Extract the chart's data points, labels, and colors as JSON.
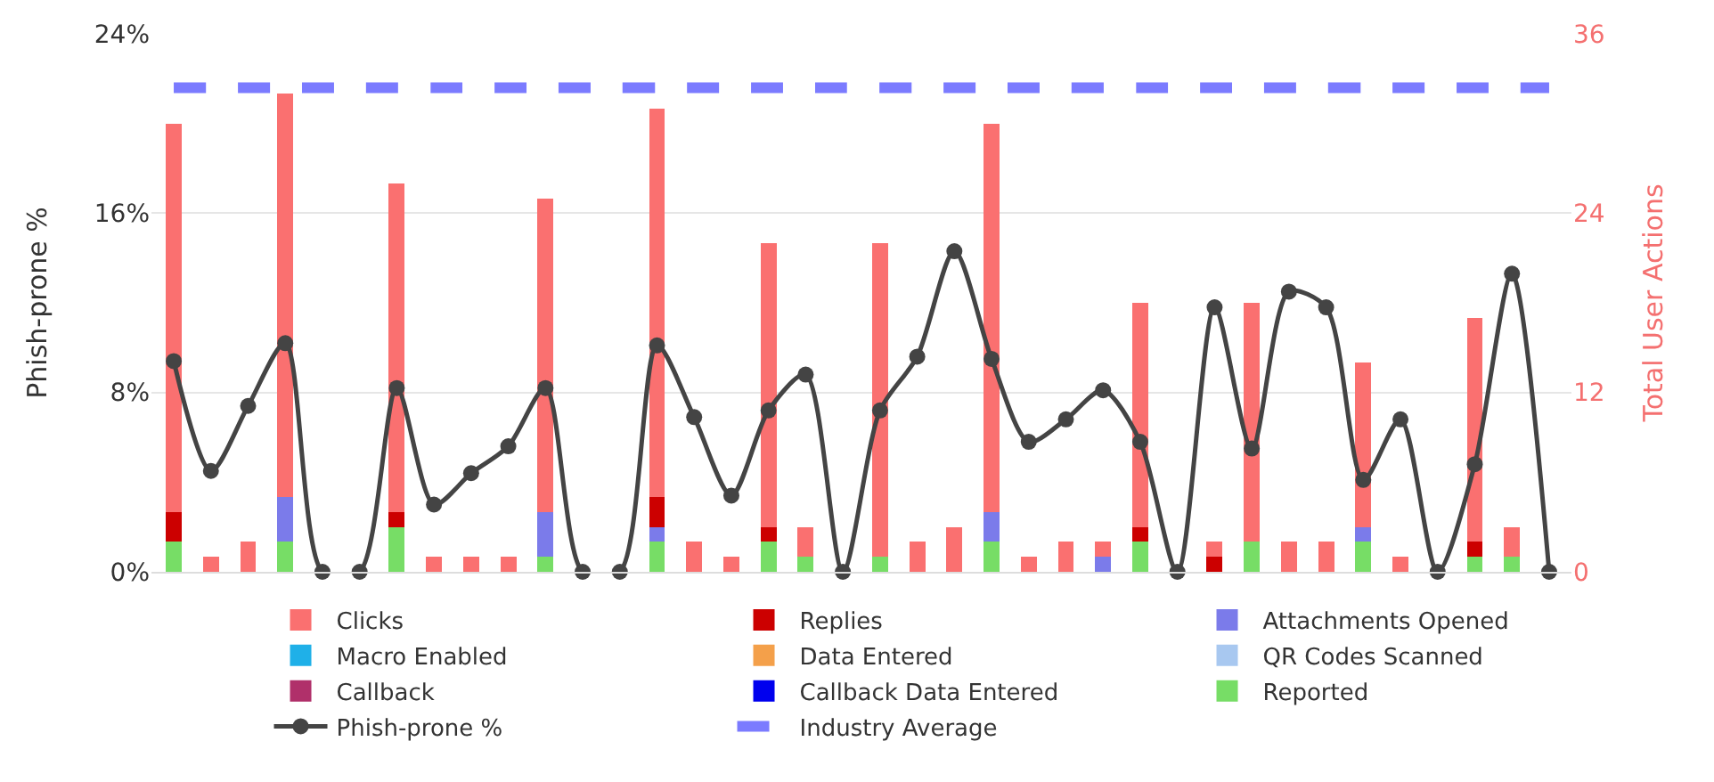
{
  "chart_data": {
    "type": "bar",
    "stacked": true,
    "categories": [
      null,
      null,
      null,
      null,
      null,
      null,
      null,
      null,
      null,
      null,
      null,
      null,
      null,
      null,
      null,
      null,
      null,
      null,
      null,
      null,
      null,
      null,
      null,
      null,
      null,
      null,
      null,
      null,
      null,
      null,
      null,
      null,
      null,
      null,
      null,
      null,
      null,
      null
    ],
    "ylabel": "Phish-prone %",
    "y2label": "Total User Actions",
    "ylim": [
      0,
      24
    ],
    "yticks": [
      {
        "value": 0,
        "label": "0%"
      },
      {
        "value": 8,
        "label": "8%"
      },
      {
        "value": 16,
        "label": "16%"
      },
      {
        "value": 24,
        "label": "24%"
      }
    ],
    "y2lim": [
      0,
      36
    ],
    "y2ticks": [
      0,
      12,
      24,
      36
    ],
    "grid": "y",
    "legend": "bottom",
    "series": [
      {
        "name": "Reported",
        "color": "#77dd66",
        "axis": "y2",
        "values": [
          2,
          0,
          0,
          2,
          0,
          0,
          3,
          0,
          0,
          0,
          1,
          0,
          0,
          2,
          0,
          0,
          2,
          1,
          0,
          1,
          0,
          0,
          2,
          0,
          0,
          0,
          2,
          0,
          0,
          2,
          0,
          0,
          2,
          0,
          0,
          1,
          1,
          0
        ]
      },
      {
        "name": "Callback Data Entered",
        "color": "#0000ee",
        "axis": "y2",
        "values": [
          0,
          0,
          0,
          0,
          0,
          0,
          0,
          0,
          0,
          0,
          0,
          0,
          0,
          0,
          0,
          0,
          0,
          0,
          0,
          0,
          0,
          0,
          0,
          0,
          0,
          0,
          0,
          0,
          0,
          0,
          0,
          0,
          0,
          0,
          0,
          0,
          0,
          0
        ]
      },
      {
        "name": "Callback",
        "color": "#b0306a",
        "axis": "y2",
        "values": [
          0,
          0,
          0,
          0,
          0,
          0,
          0,
          0,
          0,
          0,
          0,
          0,
          0,
          0,
          0,
          0,
          0,
          0,
          0,
          0,
          0,
          0,
          0,
          0,
          0,
          0,
          0,
          0,
          0,
          0,
          0,
          0,
          0,
          0,
          0,
          0,
          0,
          0
        ]
      },
      {
        "name": "QR Codes Scanned",
        "color": "#a8c8f0",
        "axis": "y2",
        "values": [
          0,
          0,
          0,
          0,
          0,
          0,
          0,
          0,
          0,
          0,
          0,
          0,
          0,
          0,
          0,
          0,
          0,
          0,
          0,
          0,
          0,
          0,
          0,
          0,
          0,
          0,
          0,
          0,
          0,
          0,
          0,
          0,
          0,
          0,
          0,
          0,
          0,
          0
        ]
      },
      {
        "name": "Data Entered",
        "color": "#f4a04a",
        "axis": "y2",
        "values": [
          0,
          0,
          0,
          0,
          0,
          0,
          0,
          0,
          0,
          0,
          0,
          0,
          0,
          0,
          0,
          0,
          0,
          0,
          0,
          0,
          0,
          0,
          0,
          0,
          0,
          0,
          0,
          0,
          0,
          0,
          0,
          0,
          0,
          0,
          0,
          0,
          0,
          0
        ]
      },
      {
        "name": "Macro Enabled",
        "color": "#1fb0e8",
        "axis": "y2",
        "values": [
          0,
          0,
          0,
          0,
          0,
          0,
          0,
          0,
          0,
          0,
          0,
          0,
          0,
          0,
          0,
          0,
          0,
          0,
          0,
          0,
          0,
          0,
          0,
          0,
          0,
          0,
          0,
          0,
          0,
          0,
          0,
          0,
          0,
          0,
          0,
          0,
          0,
          0
        ]
      },
      {
        "name": "Attachments Opened",
        "color": "#7b7bea",
        "axis": "y2",
        "values": [
          0,
          0,
          0,
          3,
          0,
          0,
          0,
          0,
          0,
          0,
          3,
          0,
          0,
          1,
          0,
          0,
          0,
          0,
          0,
          0,
          0,
          0,
          2,
          0,
          0,
          1,
          0,
          0,
          0,
          0,
          0,
          0,
          1,
          0,
          0,
          0,
          0,
          0
        ]
      },
      {
        "name": "Replies",
        "color": "#cc0000",
        "axis": "y2",
        "values": [
          2,
          0,
          0,
          0,
          0,
          0,
          1,
          0,
          0,
          0,
          0,
          0,
          0,
          2,
          0,
          0,
          1,
          0,
          0,
          0,
          0,
          0,
          0,
          0,
          0,
          0,
          1,
          0,
          1,
          0,
          0,
          0,
          0,
          0,
          0,
          1,
          0,
          0
        ]
      },
      {
        "name": "Clicks",
        "color": "#fa7070",
        "axis": "y2",
        "values": [
          26,
          1,
          2,
          27,
          0,
          0,
          22,
          1,
          1,
          1,
          21,
          0,
          0,
          26,
          2,
          1,
          19,
          2,
          0,
          21,
          2,
          3,
          26,
          1,
          2,
          1,
          15,
          0,
          1,
          16,
          2,
          2,
          11,
          1,
          0,
          15,
          2,
          0
        ]
      },
      {
        "name": "Phish-prone %",
        "type": "line",
        "color": "#444444",
        "axis": "y",
        "marker": "circle",
        "line_style": "solid",
        "values": [
          9.4,
          4.5,
          7.4,
          10.2,
          0,
          0,
          8.2,
          3.0,
          4.4,
          5.6,
          8.2,
          0,
          0,
          10.1,
          6.9,
          3.4,
          7.2,
          8.8,
          0,
          7.2,
          9.6,
          14.3,
          9.5,
          5.8,
          6.8,
          8.1,
          5.8,
          0,
          11.8,
          5.5,
          12.5,
          11.8,
          4.1,
          6.8,
          0,
          4.8,
          13.3,
          0
        ]
      },
      {
        "name": "Industry Average",
        "type": "line",
        "color": "#7b7bff",
        "axis": "y",
        "marker": "none",
        "line_style": "dashed",
        "values": [
          21.6,
          21.6,
          21.6,
          21.6,
          21.6,
          21.6,
          21.6,
          21.6,
          21.6,
          21.6,
          21.6,
          21.6,
          21.6,
          21.6,
          21.6,
          21.6,
          21.6,
          21.6,
          21.6,
          21.6,
          21.6,
          21.6,
          21.6,
          21.6,
          21.6,
          21.6,
          21.6,
          21.6,
          21.6,
          21.6,
          21.6,
          21.6,
          21.6,
          21.6,
          21.6,
          21.6,
          21.6,
          21.6
        ]
      }
    ]
  }
}
